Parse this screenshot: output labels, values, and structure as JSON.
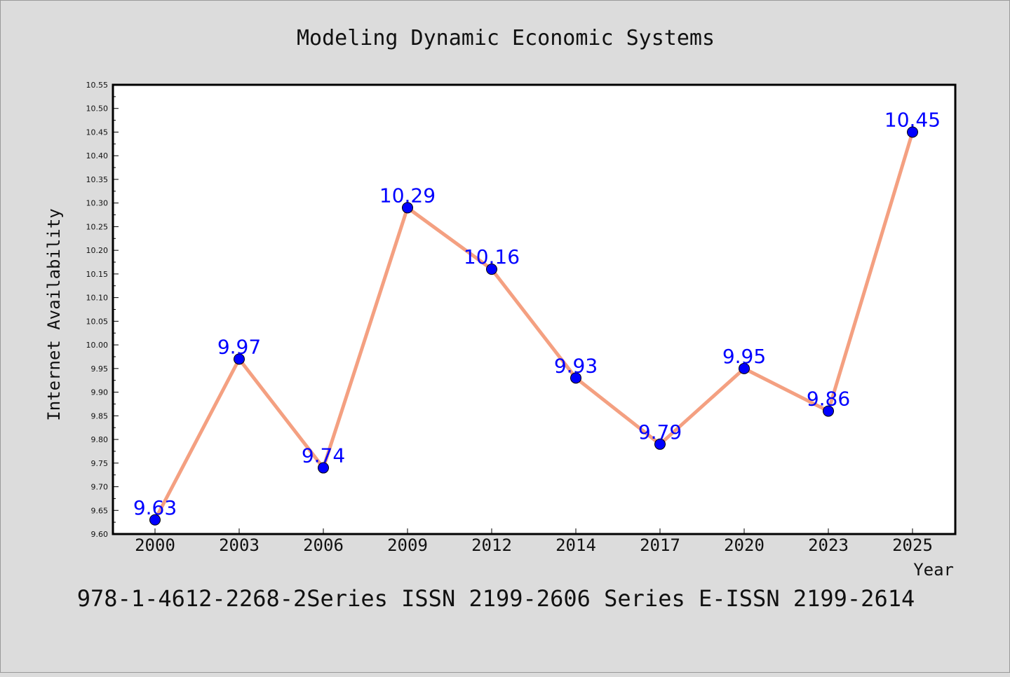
{
  "chart_data": {
    "type": "line",
    "title": "Modeling Dynamic Economic Systems",
    "xlabel": "Year",
    "ylabel": "Internet Availability",
    "categories": [
      "2000",
      "2003",
      "2006",
      "2009",
      "2012",
      "2014",
      "2017",
      "2020",
      "2023",
      "2025"
    ],
    "series": [
      {
        "values": [
          9.63,
          9.97,
          9.74,
          10.29,
          10.16,
          9.93,
          9.79,
          9.95,
          9.86,
          10.45
        ]
      }
    ],
    "data_labels": [
      "9.63",
      "9.97",
      "9.74",
      "10.29",
      "10.16",
      "9.93",
      "9.79",
      "9.95",
      "9.86",
      "10.45"
    ],
    "ylim": [
      9.6,
      10.55
    ],
    "yticks": [
      "9.60",
      "9.65",
      "9.70",
      "9.75",
      "9.80",
      "9.85",
      "9.90",
      "9.95",
      "10.00",
      "10.05",
      "10.10",
      "10.15",
      "10.20",
      "10.25",
      "10.30",
      "10.35",
      "10.40",
      "10.45",
      "10.50",
      "10.55"
    ],
    "grid": false,
    "legend": "none",
    "colors": {
      "line": "#f4a081",
      "marker": "#0000ff",
      "label": "#0000ff",
      "background": "#dcdcdc",
      "plot_background": "#ffffff"
    }
  },
  "footer": "978-1-4612-2268-2Series ISSN 2199-2606 Series E-ISSN 2199-2614"
}
